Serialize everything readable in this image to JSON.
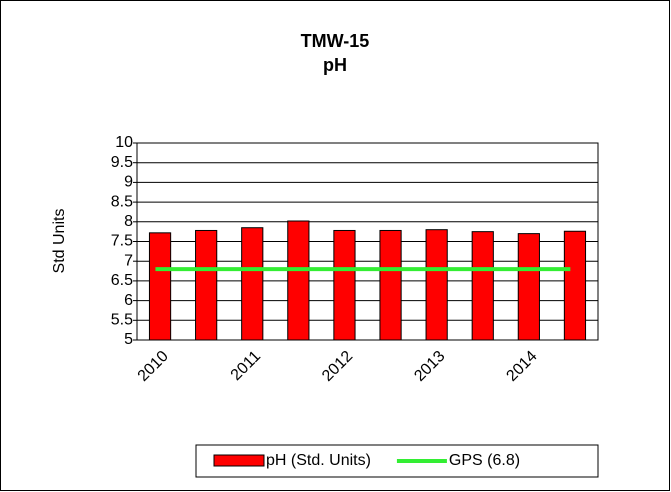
{
  "chart_data": {
    "type": "bar",
    "title": [
      "TMW-15",
      "pH"
    ],
    "y_label": "Std Units",
    "categories": [
      "2010",
      null,
      "2011",
      null,
      "2012",
      null,
      "2013",
      null,
      "2014",
      null
    ],
    "series": [
      {
        "name": "pH (Std. Units)",
        "type": "bar",
        "color": "#ff0000",
        "values": [
          7.72,
          7.78,
          7.85,
          8.02,
          7.78,
          7.78,
          7.8,
          7.75,
          7.7,
          7.76
        ]
      },
      {
        "name": "GPS (6.8)",
        "type": "line",
        "color": "#33ee33",
        "values": [
          6.8,
          6.8,
          6.8,
          6.8,
          6.8,
          6.8,
          6.8,
          6.8,
          6.8,
          6.8
        ]
      }
    ],
    "ylim": [
      5,
      10
    ],
    "yticks": [
      5,
      5.5,
      6,
      6.5,
      7,
      7.5,
      8,
      8.5,
      9,
      9.5,
      10
    ],
    "grid": true,
    "legend": "bottom"
  }
}
